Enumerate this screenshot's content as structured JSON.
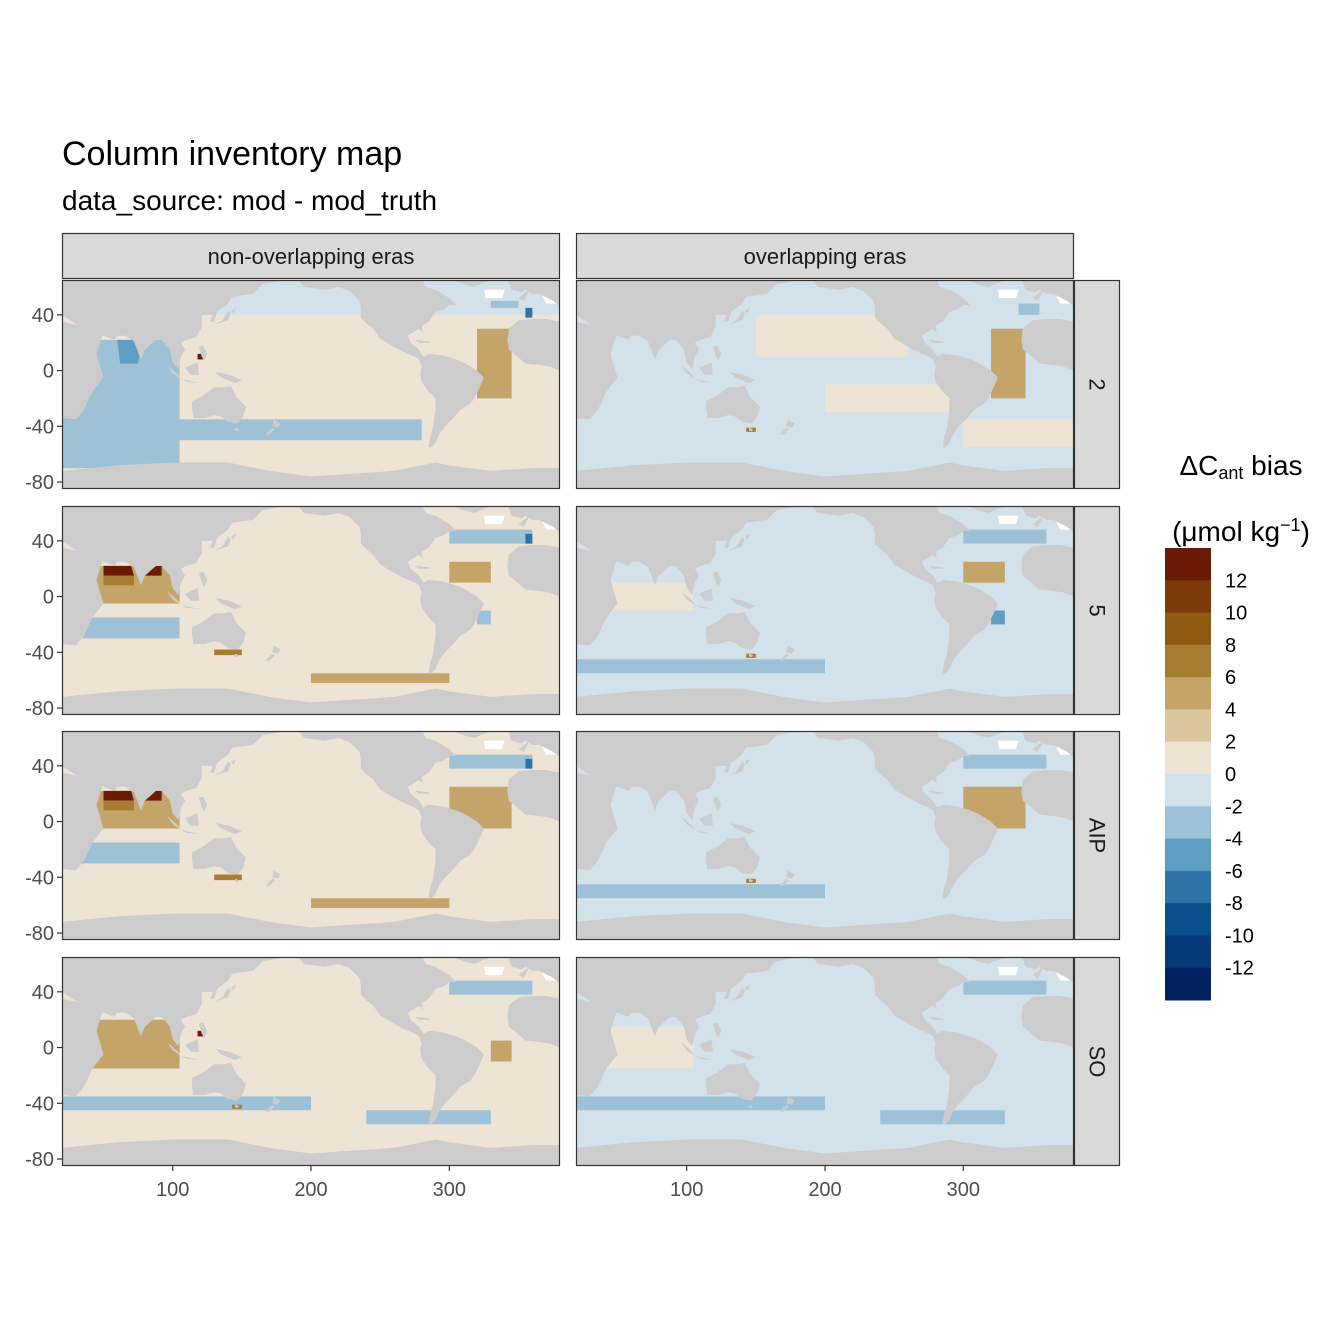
{
  "title": "Column inventory map",
  "subtitle": "data_source: mod - mod_truth",
  "chart_data": {
    "type": "heatmap",
    "column_facets": [
      "non-overlapping eras",
      "overlapping eras"
    ],
    "row_facets": [
      "2",
      "5",
      "AIP",
      "SO"
    ],
    "x_ticks": [
      100,
      200,
      300
    ],
    "y_ticks": [
      40,
      0,
      -40,
      -80
    ],
    "xlim": [
      20,
      380
    ],
    "ylim": [
      -85,
      65
    ],
    "legend": {
      "title_prefix": "ΔC",
      "title_sub": "ant",
      "title_suffix": " bias",
      "unit_prefix": "(μmol kg",
      "unit_sup": "−1",
      "unit_suffix": ")",
      "breaks": [
        "12",
        "10",
        "8",
        "6",
        "4",
        "2",
        "0",
        "-2",
        "-4",
        "-6",
        "-8",
        "-10",
        "-12"
      ],
      "colors": [
        "#6b1b05",
        "#7f3a0c",
        "#8f5a12",
        "#a77c33",
        "#c4a469",
        "#dcc6a0",
        "#ede4d6",
        "#d3e2ea",
        "#9dc1d6",
        "#5f9ec2",
        "#2d73a8",
        "#0b508c",
        "#063a7a",
        "#03215e"
      ],
      "placement": "right"
    },
    "land_color": "#cccccc",
    "missing_color": "#ffffff"
  }
}
